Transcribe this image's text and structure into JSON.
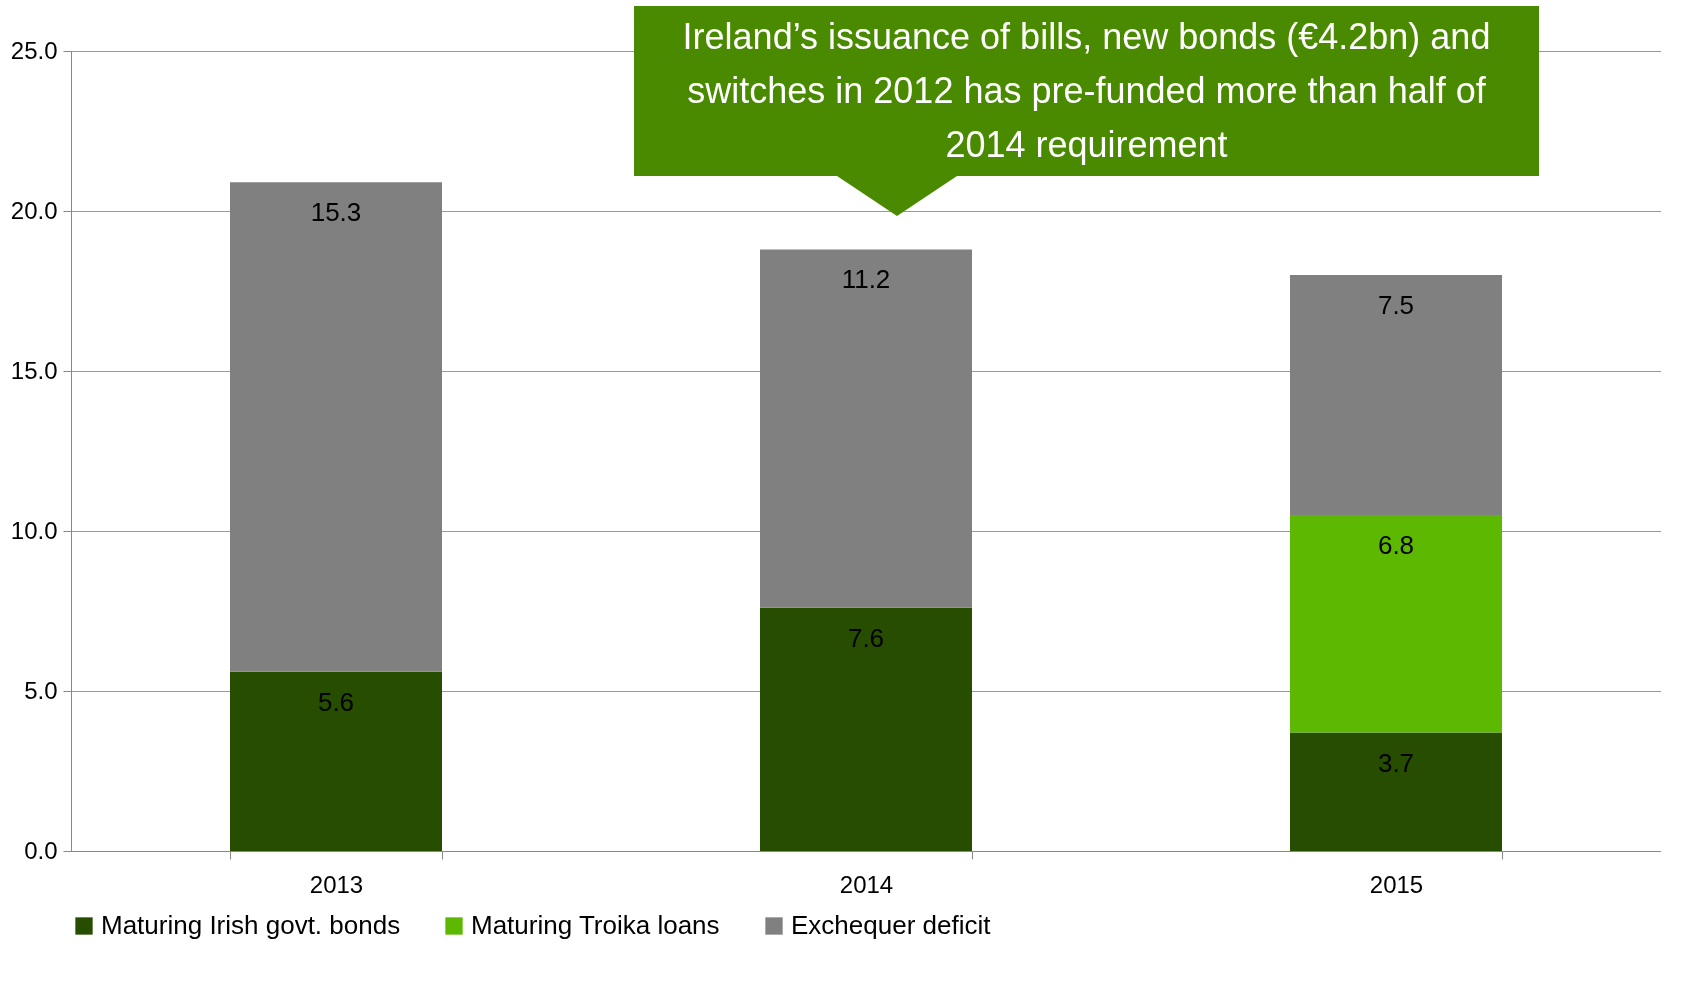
{
  "chart_data": {
    "type": "bar",
    "stacked": true,
    "categories": [
      "2013",
      "2014",
      "2015"
    ],
    "series": [
      {
        "name": "Maturing Irish govt. bonds",
        "color": "#264d00",
        "values": [
          5.6,
          7.6,
          3.7
        ]
      },
      {
        "name": "Maturing Troika loans",
        "color": "#5cb800",
        "values": [
          null,
          null,
          6.8
        ]
      },
      {
        "name": "Exchequer deficit",
        "color": "#808080",
        "values": [
          15.3,
          11.2,
          7.5
        ]
      }
    ],
    "ylim": [
      0,
      25
    ],
    "yticks": [
      {
        "value": 0,
        "label": "0.0"
      },
      {
        "value": 5,
        "label": "5.0"
      },
      {
        "value": 10,
        "label": "10.0"
      },
      {
        "value": 15,
        "label": "15.0"
      },
      {
        "value": 20,
        "label": "20.0"
      },
      {
        "value": 25,
        "label": "25.0"
      }
    ],
    "grid": "y",
    "legend": "bottom",
    "data_labels": true,
    "annotations": [
      "Ireland’s issuance of bills, new bonds (€4.2bn) and switches in 2012 has pre-funded more than half of 2014 requirement"
    ]
  }
}
